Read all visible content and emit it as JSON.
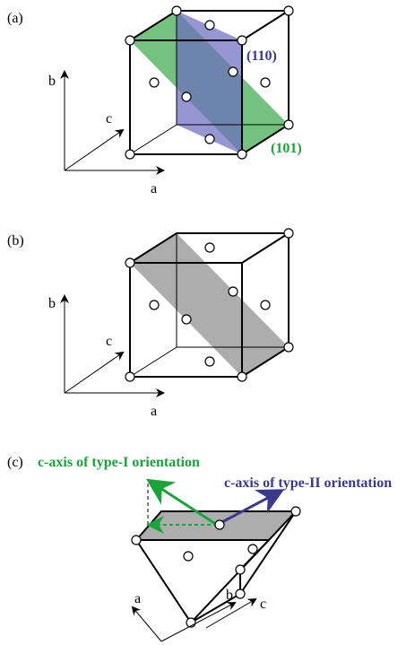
{
  "panels": [
    {
      "label": "(a)",
      "planes": [
        "(110)",
        "(101)"
      ],
      "axes": {
        "a": "a",
        "b": "b",
        "c": "c"
      }
    },
    {
      "label": "(b)",
      "axes": {
        "a": "a",
        "b": "b",
        "c": "c"
      }
    },
    {
      "label": "(c)",
      "type1": "c-axis of type-I orientation",
      "type2": "c-axis of type-II orientation",
      "axes": {
        "a": "a",
        "b": "b",
        "c": "c"
      }
    }
  ]
}
